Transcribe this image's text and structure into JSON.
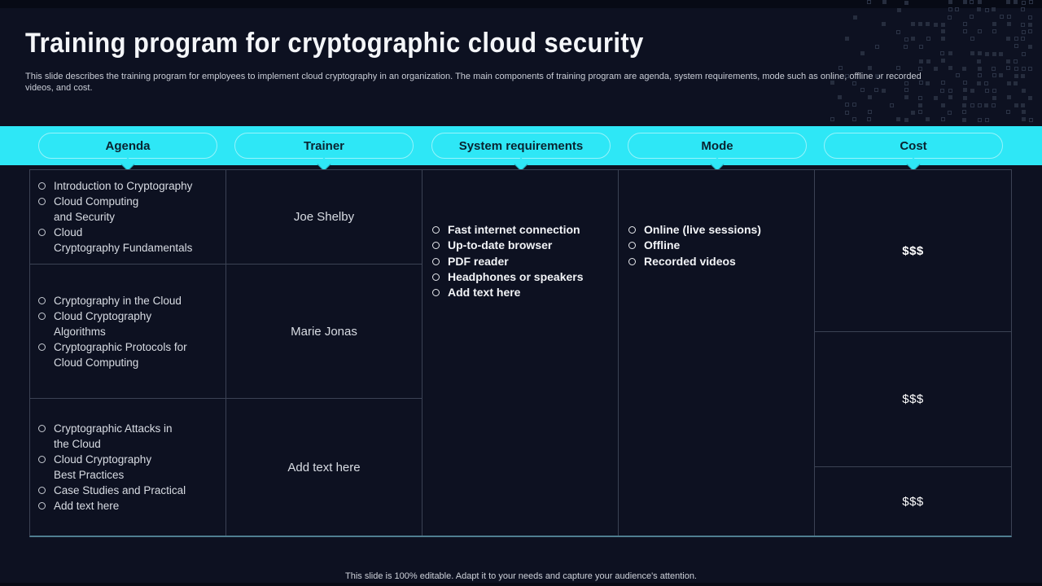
{
  "header": {
    "title": "Training program for cryptographic cloud security",
    "description": "This slide describes the training program for employees to implement cloud cryptography in an organization. The main components of training program are agenda, system requirements, mode such as online, offline or recorded\nvideos, and cost."
  },
  "colors": {
    "accent_cyan": "#2ee7f6",
    "background": "#0d1121",
    "table_border": "#3b4254",
    "table_bottom_border": "#4f7e90",
    "header_text": "#0a2330",
    "body_text": "#d8dce3"
  },
  "table": {
    "columns": [
      "Agenda",
      "Trainer",
      "System requirements",
      "Mode",
      "Cost"
    ],
    "agenda": {
      "row1": [
        "Introduction to Cryptography",
        "Cloud Computing\nand Security",
        "Cloud\nCryptography Fundamentals"
      ],
      "row2": [
        "Cryptography in the Cloud",
        "Cloud Cryptography\nAlgorithms",
        "Cryptographic Protocols for\nCloud Computing"
      ],
      "row3": [
        "Cryptographic Attacks in\nthe Cloud",
        "Cloud Cryptography\nBest Practices",
        "Case Studies and Practical",
        "Add text here"
      ]
    },
    "trainer": {
      "row1": "Joe Shelby",
      "row2": "Marie Jonas",
      "row3": "Add text here"
    },
    "system_requirements": [
      "Fast internet connection",
      "Up-to-date browser",
      "PDF reader",
      "Headphones or speakers",
      "Add text here"
    ],
    "mode": [
      "Online (live sessions)",
      "Offline",
      "Recorded videos"
    ],
    "cost": {
      "row1": "$$$",
      "row2": "$$$",
      "row3": "$$$"
    }
  },
  "footer": {
    "note": "This slide is 100% editable.  Adapt it to your needs and capture your audience's attention."
  }
}
